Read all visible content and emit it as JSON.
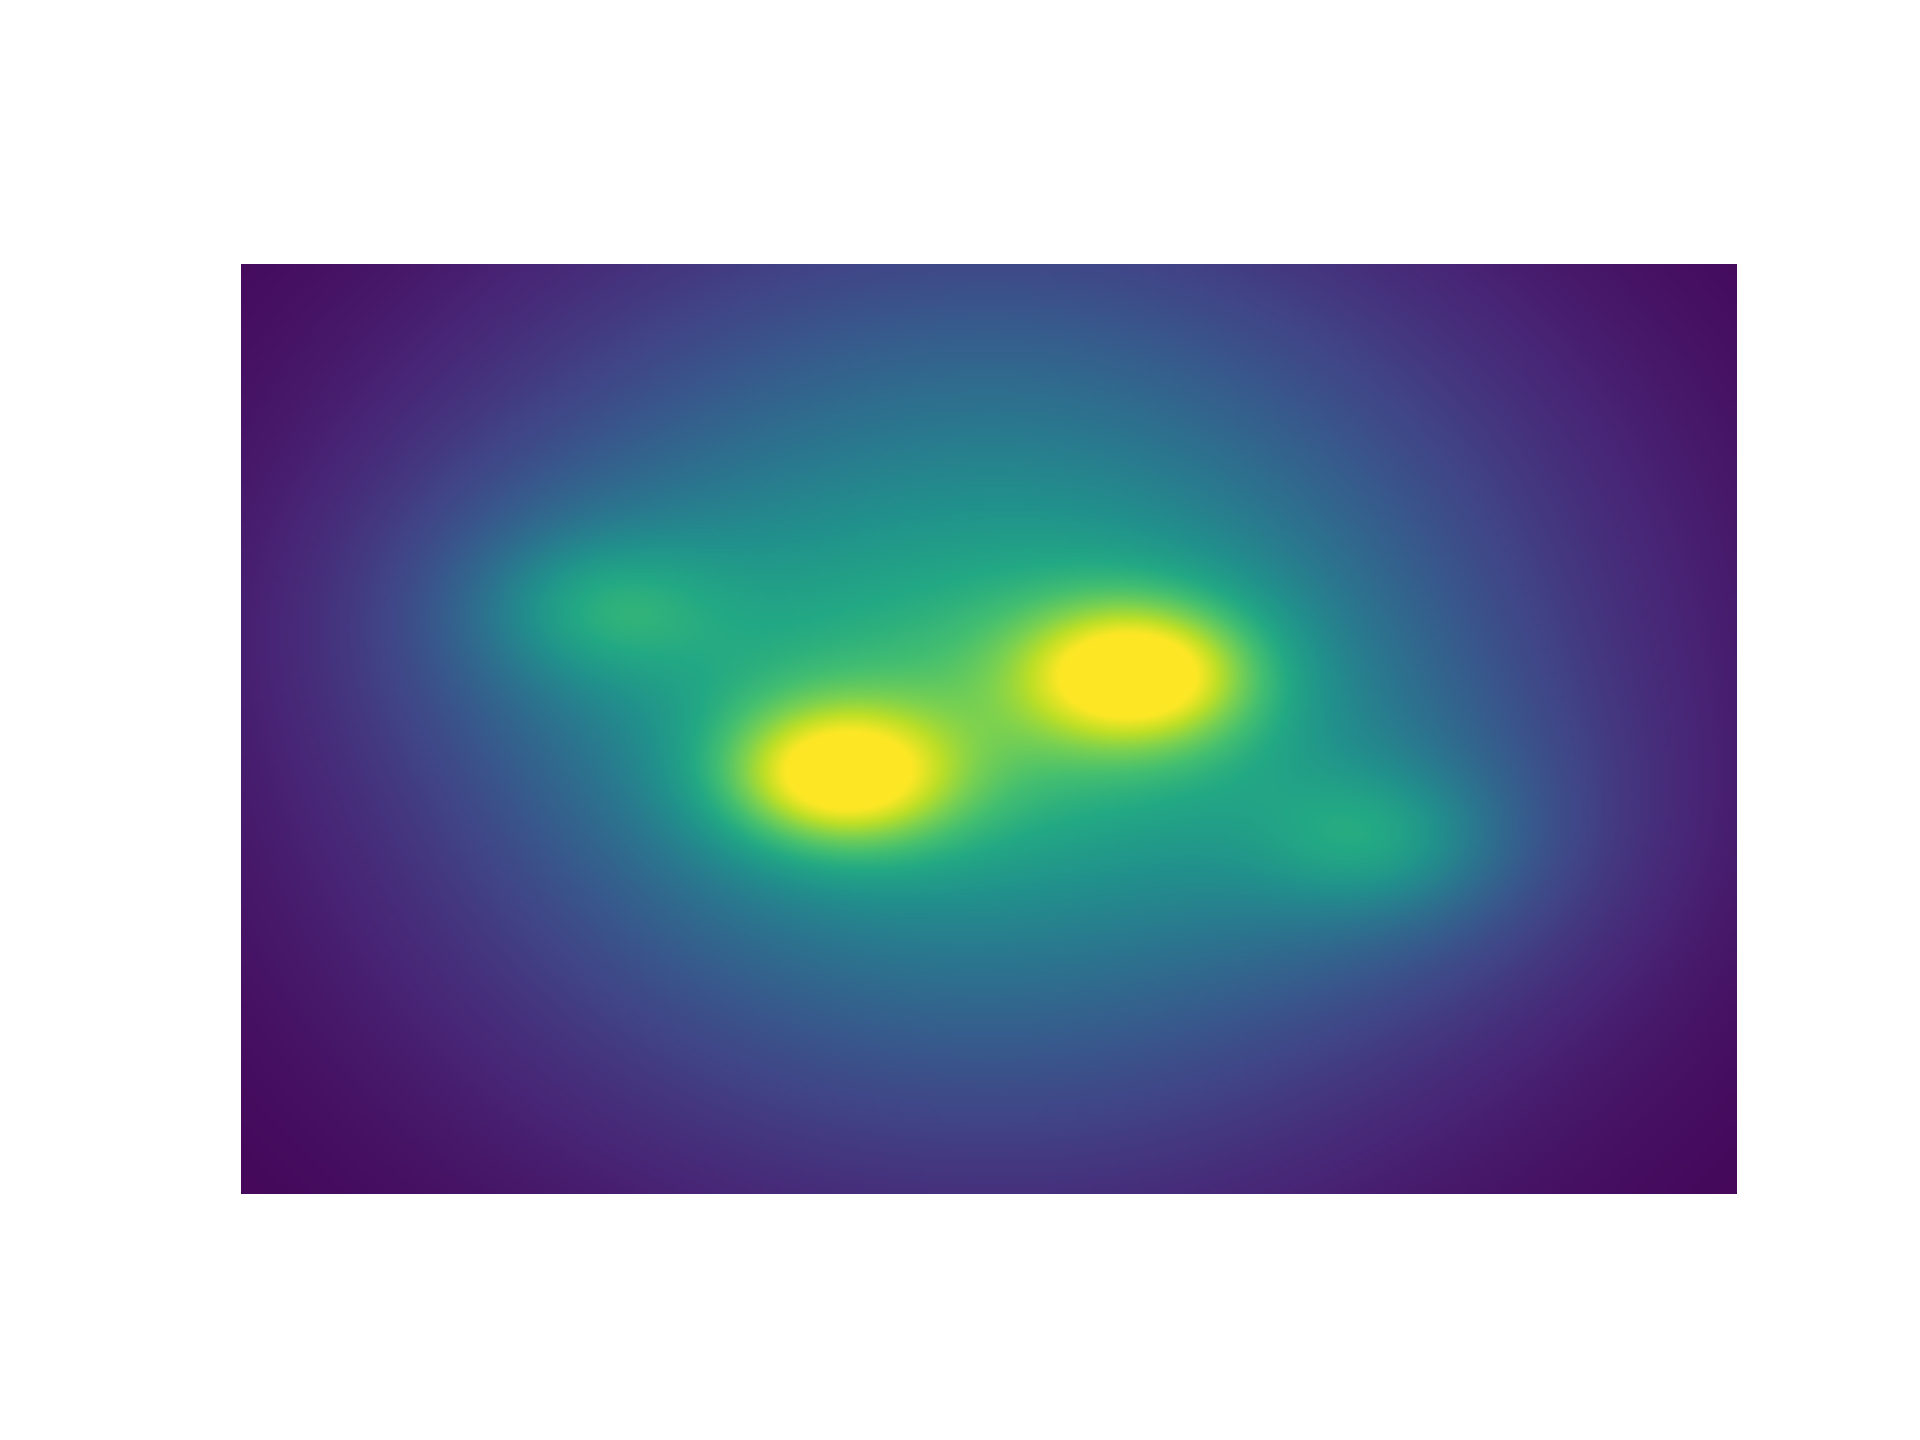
{
  "chart_data": {
    "type": "heatmap",
    "title": "",
    "xlabel": "",
    "ylabel": "",
    "colormap": "viridis",
    "axes_visible": false,
    "grid": false,
    "legend": "none",
    "xlim": [
      0,
      1
    ],
    "ylim": [
      0,
      1
    ],
    "z_range": [
      0,
      1
    ],
    "background": {
      "center": [
        0.5,
        0.55
      ],
      "amplitude": 0.56,
      "spread_x": 0.25,
      "spread_y": 0.33
    },
    "peaks": [
      {
        "x": 0.24,
        "y": 0.63,
        "value": 0.68
      },
      {
        "x": 0.4,
        "y": 0.45,
        "value": 1.0
      },
      {
        "x": 0.6,
        "y": 0.56,
        "value": 1.0
      },
      {
        "x": 0.76,
        "y": 0.38,
        "value": 0.68
      }
    ],
    "colors": {
      "low": "#440154",
      "mid_low": "#3b528b",
      "mid": "#21918c",
      "mid_high": "#5ec962",
      "high": "#fde725"
    }
  }
}
